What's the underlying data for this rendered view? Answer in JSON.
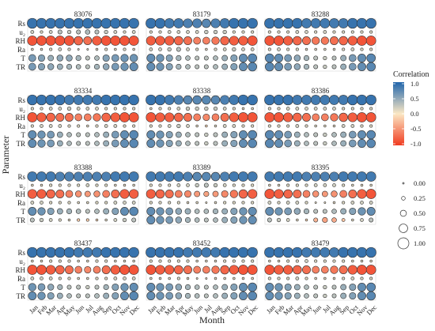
{
  "chart_data": {
    "type": "heatmap",
    "encoding": "bubble",
    "axis": {
      "xlabel": "Month",
      "ylabel": "Parameter",
      "months": [
        "Jan",
        "Feb",
        "Mar",
        "Apr",
        "May",
        "Jun",
        "Jul",
        "Aug",
        "Sep",
        "Oct",
        "Nov",
        "Dec"
      ],
      "parameters": [
        "Rs",
        "u₂",
        "RH",
        "Ra",
        "T",
        "TR"
      ]
    },
    "legend": {
      "color_title": "Correlation",
      "color_ticks": [
        "1.0",
        "0.5",
        "0.0",
        "-0.5",
        "-1.0"
      ],
      "color_range": [
        -1,
        1
      ],
      "colors": {
        "high": "#2166ac",
        "mid": "#fbe8c4",
        "low": "#f03b20"
      },
      "size_ticks": [
        "0.00",
        "0.25",
        "0.50",
        "0.75",
        "1.00"
      ],
      "placement": "right"
    },
    "panels": [
      {
        "station": "83076",
        "values": [
          [
            0.9,
            0.9,
            0.9,
            0.9,
            0.9,
            0.9,
            0.9,
            0.9,
            0.9,
            0.9,
            0.9,
            0.9
          ],
          [
            0.2,
            0.15,
            0.2,
            0.3,
            0.25,
            0.3,
            0.35,
            0.3,
            0.25,
            0.2,
            0.15,
            0.2
          ],
          [
            -0.85,
            -0.85,
            -0.85,
            -0.85,
            -0.85,
            -0.75,
            -0.7,
            -0.8,
            -0.85,
            -0.85,
            -0.85,
            -0.85
          ],
          [
            0.1,
            0.1,
            0.15,
            0.2,
            0.15,
            0.05,
            0.05,
            0.1,
            0.15,
            0.1,
            0.15,
            0.1
          ],
          [
            0.6,
            0.55,
            0.45,
            0.5,
            0.5,
            0.4,
            0.3,
            0.35,
            0.55,
            0.6,
            0.65,
            0.65
          ],
          [
            0.6,
            0.55,
            0.5,
            0.45,
            0.4,
            0.35,
            0.3,
            0.4,
            0.5,
            0.6,
            0.65,
            0.7
          ]
        ]
      },
      {
        "station": "83179",
        "values": [
          [
            0.9,
            0.9,
            0.85,
            0.85,
            0.8,
            0.8,
            0.75,
            0.8,
            0.85,
            0.9,
            0.9,
            0.9
          ],
          [
            0.15,
            0.15,
            0.2,
            0.2,
            0.2,
            0.2,
            0.25,
            0.25,
            0.25,
            0.15,
            0.15,
            0.15
          ],
          [
            -0.8,
            -0.8,
            -0.8,
            -0.75,
            -0.7,
            -0.6,
            -0.6,
            -0.65,
            -0.75,
            -0.8,
            -0.8,
            -0.85
          ],
          [
            0.2,
            0.2,
            0.25,
            0.3,
            0.2,
            0.15,
            0.1,
            0.15,
            0.2,
            0.25,
            0.2,
            0.2
          ],
          [
            0.7,
            0.65,
            0.55,
            0.4,
            0.35,
            0.3,
            0.3,
            0.35,
            0.45,
            0.55,
            0.7,
            0.75
          ],
          [
            0.7,
            0.65,
            0.55,
            0.4,
            0.35,
            0.3,
            0.3,
            0.35,
            0.45,
            0.55,
            0.7,
            0.75
          ]
        ]
      },
      {
        "station": "83288",
        "values": [
          [
            0.9,
            0.9,
            0.9,
            0.9,
            0.85,
            0.85,
            0.85,
            0.85,
            0.85,
            0.9,
            0.9,
            0.9
          ],
          [
            0.15,
            0.15,
            0.15,
            0.2,
            0.2,
            0.15,
            0.2,
            0.15,
            0.15,
            0.15,
            0.15,
            0.15
          ],
          [
            -0.85,
            -0.85,
            -0.8,
            -0.75,
            -0.7,
            -0.65,
            -0.65,
            -0.7,
            -0.75,
            -0.8,
            -0.85,
            -0.85
          ],
          [
            0.15,
            0.2,
            0.15,
            0.15,
            0.1,
            0.1,
            0.1,
            0.1,
            0.15,
            0.2,
            0.15,
            0.15
          ],
          [
            0.75,
            0.7,
            0.6,
            0.5,
            0.4,
            0.3,
            0.25,
            0.3,
            0.45,
            0.6,
            0.7,
            0.75
          ],
          [
            0.75,
            0.7,
            0.6,
            0.5,
            0.4,
            0.3,
            0.25,
            0.3,
            0.45,
            0.6,
            0.7,
            0.75
          ]
        ]
      },
      {
        "station": "83334",
        "values": [
          [
            0.9,
            0.9,
            0.9,
            0.9,
            0.85,
            0.85,
            0.85,
            0.85,
            0.9,
            0.9,
            0.9,
            0.9
          ],
          [
            0.15,
            0.15,
            0.2,
            0.2,
            0.25,
            0.2,
            0.2,
            0.2,
            0.15,
            0.15,
            0.15,
            0.15
          ],
          [
            -0.85,
            -0.8,
            -0.75,
            -0.7,
            -0.7,
            -0.6,
            -0.6,
            -0.65,
            -0.75,
            -0.8,
            -0.85,
            -0.85
          ],
          [
            0.15,
            0.2,
            0.2,
            0.2,
            0.15,
            0.15,
            0.1,
            0.15,
            0.2,
            0.2,
            0.15,
            0.15
          ],
          [
            0.7,
            0.65,
            0.6,
            0.45,
            0.35,
            0.3,
            0.3,
            0.35,
            0.45,
            0.6,
            0.7,
            0.75
          ],
          [
            0.7,
            0.65,
            0.6,
            0.45,
            0.35,
            0.3,
            0.3,
            0.35,
            0.45,
            0.6,
            0.7,
            0.75
          ]
        ]
      },
      {
        "station": "83338",
        "values": [
          [
            0.9,
            0.9,
            0.85,
            0.8,
            0.75,
            0.75,
            0.75,
            0.75,
            0.8,
            0.85,
            0.9,
            0.9
          ],
          [
            0.1,
            0.15,
            0.15,
            0.2,
            0.25,
            0.25,
            0.25,
            0.25,
            0.2,
            0.15,
            0.1,
            0.1
          ],
          [
            -0.85,
            -0.8,
            -0.8,
            -0.75,
            -0.7,
            -0.6,
            -0.55,
            -0.6,
            -0.7,
            -0.8,
            -0.85,
            -0.85
          ],
          [
            0.15,
            0.15,
            0.2,
            0.25,
            0.2,
            0.1,
            -0.1,
            0.1,
            0.2,
            0.2,
            0.15,
            0.15
          ],
          [
            0.7,
            0.65,
            0.55,
            0.45,
            0.35,
            0.3,
            0.25,
            0.3,
            0.45,
            0.55,
            0.7,
            0.75
          ],
          [
            0.7,
            0.65,
            0.55,
            0.45,
            0.35,
            0.3,
            0.25,
            0.3,
            0.45,
            0.55,
            0.7,
            0.75
          ]
        ]
      },
      {
        "station": "83386",
        "values": [
          [
            0.9,
            0.9,
            0.9,
            0.85,
            0.85,
            0.85,
            0.85,
            0.85,
            0.85,
            0.9,
            0.9,
            0.9
          ],
          [
            0.15,
            0.15,
            0.2,
            0.2,
            0.2,
            0.2,
            0.2,
            0.2,
            0.15,
            0.15,
            0.15,
            0.15
          ],
          [
            -0.85,
            -0.85,
            -0.8,
            -0.75,
            -0.7,
            -0.6,
            -0.6,
            -0.65,
            -0.75,
            -0.8,
            -0.85,
            -0.85
          ],
          [
            0.15,
            0.15,
            0.15,
            0.2,
            0.15,
            0.1,
            0.1,
            0.1,
            0.2,
            0.2,
            0.15,
            0.15
          ],
          [
            0.75,
            0.7,
            0.6,
            0.45,
            0.35,
            0.3,
            0.25,
            0.35,
            0.45,
            0.6,
            0.7,
            0.75
          ],
          [
            0.75,
            0.7,
            0.6,
            0.45,
            0.35,
            0.3,
            0.25,
            0.35,
            0.45,
            0.6,
            0.7,
            0.75
          ]
        ]
      },
      {
        "station": "83388",
        "values": [
          [
            0.85,
            0.85,
            0.85,
            0.8,
            0.8,
            0.8,
            0.8,
            0.8,
            0.8,
            0.85,
            0.85,
            0.85
          ],
          [
            0.1,
            0.1,
            0.15,
            0.15,
            0.15,
            0.15,
            0.2,
            0.15,
            0.15,
            0.1,
            0.1,
            0.1
          ],
          [
            -0.8,
            -0.8,
            -0.75,
            -0.7,
            -0.6,
            -0.5,
            -0.45,
            -0.5,
            -0.6,
            -0.7,
            -0.8,
            -0.8
          ],
          [
            0.2,
            0.2,
            0.15,
            0.15,
            0.15,
            0.1,
            0.1,
            0.15,
            0.15,
            0.2,
            0.2,
            0.2
          ],
          [
            0.7,
            0.65,
            0.55,
            0.45,
            0.4,
            0.35,
            0.3,
            0.35,
            0.45,
            0.55,
            0.7,
            0.75
          ],
          [
            0.3,
            0.25,
            0.2,
            0.15,
            0.1,
            -0.15,
            -0.15,
            -0.1,
            0.1,
            0.2,
            0.25,
            0.3
          ]
        ]
      },
      {
        "station": "83389",
        "values": [
          [
            0.85,
            0.85,
            0.85,
            0.85,
            0.8,
            0.75,
            0.75,
            0.75,
            0.8,
            0.85,
            0.85,
            0.85
          ],
          [
            0.15,
            0.15,
            0.15,
            0.2,
            0.2,
            0.25,
            0.3,
            0.25,
            0.2,
            0.15,
            0.15,
            0.15
          ],
          [
            -0.8,
            -0.75,
            -0.7,
            -0.6,
            -0.55,
            -0.45,
            -0.4,
            -0.45,
            -0.55,
            -0.65,
            -0.75,
            -0.8
          ],
          [
            0.15,
            0.15,
            0.15,
            0.15,
            0.1,
            0.1,
            0.05,
            0.1,
            0.15,
            0.15,
            0.15,
            0.15
          ],
          [
            0.7,
            0.65,
            0.6,
            0.5,
            0.45,
            0.35,
            0.35,
            0.4,
            0.45,
            0.55,
            0.65,
            0.7
          ],
          [
            0.7,
            0.65,
            0.6,
            0.5,
            0.4,
            0.35,
            0.3,
            0.35,
            0.45,
            0.55,
            0.65,
            0.7
          ]
        ]
      },
      {
        "station": "83395",
        "values": [
          [
            0.85,
            0.85,
            0.85,
            0.85,
            0.8,
            0.8,
            0.8,
            0.8,
            0.85,
            0.85,
            0.85,
            0.85
          ],
          [
            0.1,
            0.1,
            0.15,
            0.15,
            0.15,
            0.2,
            0.2,
            0.2,
            0.15,
            0.1,
            0.1,
            0.1
          ],
          [
            -0.85,
            -0.8,
            -0.75,
            -0.7,
            -0.6,
            -0.5,
            -0.45,
            -0.5,
            -0.6,
            -0.7,
            -0.8,
            -0.85
          ],
          [
            0.2,
            0.15,
            0.2,
            0.2,
            0.15,
            0.05,
            0.05,
            0.1,
            0.15,
            0.2,
            0.2,
            0.2
          ],
          [
            0.7,
            0.65,
            0.6,
            0.5,
            0.4,
            0.3,
            0.3,
            0.35,
            0.45,
            0.55,
            0.65,
            0.7
          ],
          [
            0.3,
            0.25,
            0.2,
            0.1,
            -0.1,
            -0.3,
            -0.4,
            -0.35,
            -0.2,
            0.1,
            0.2,
            0.3
          ]
        ]
      },
      {
        "station": "83437",
        "values": [
          [
            0.9,
            0.9,
            0.9,
            0.9,
            0.9,
            0.85,
            0.85,
            0.85,
            0.9,
            0.9,
            0.9,
            0.9
          ],
          [
            0.1,
            0.1,
            0.15,
            0.15,
            0.15,
            0.1,
            0.1,
            0.15,
            0.15,
            0.1,
            0.1,
            0.1
          ],
          [
            -0.85,
            -0.85,
            -0.8,
            -0.75,
            -0.7,
            -0.6,
            -0.55,
            -0.6,
            -0.7,
            -0.8,
            -0.85,
            -0.85
          ],
          [
            0.2,
            0.2,
            0.2,
            0.15,
            0.15,
            0.1,
            0.1,
            0.15,
            0.15,
            0.2,
            0.2,
            0.2
          ],
          [
            0.65,
            0.6,
            0.5,
            0.4,
            0.3,
            0.3,
            0.25,
            0.3,
            0.4,
            0.55,
            0.65,
            0.7
          ],
          [
            0.7,
            0.65,
            0.55,
            0.45,
            0.35,
            0.3,
            0.3,
            0.35,
            0.45,
            0.55,
            0.7,
            0.75
          ]
        ]
      },
      {
        "station": "83452",
        "values": [
          [
            0.9,
            0.9,
            0.9,
            0.9,
            0.85,
            0.85,
            0.85,
            0.85,
            0.9,
            0.9,
            0.9,
            0.9
          ],
          [
            0.15,
            0.15,
            0.15,
            0.15,
            0.15,
            0.1,
            0.1,
            0.1,
            0.15,
            0.15,
            0.15,
            0.15
          ],
          [
            -0.85,
            -0.8,
            -0.8,
            -0.75,
            -0.7,
            -0.6,
            -0.6,
            -0.65,
            -0.75,
            -0.8,
            -0.85,
            -0.85
          ],
          [
            0.1,
            0.1,
            0.1,
            0.15,
            0.1,
            0.05,
            0.05,
            0.1,
            0.1,
            0.1,
            0.1,
            0.1
          ],
          [
            0.7,
            0.65,
            0.6,
            0.5,
            0.4,
            0.35,
            0.3,
            0.35,
            0.45,
            0.55,
            0.7,
            0.75
          ],
          [
            0.7,
            0.65,
            0.6,
            0.5,
            0.4,
            0.35,
            0.3,
            0.35,
            0.45,
            0.55,
            0.7,
            0.75
          ]
        ]
      },
      {
        "station": "83479",
        "values": [
          [
            0.9,
            0.9,
            0.9,
            0.9,
            0.85,
            0.85,
            0.85,
            0.85,
            0.9,
            0.9,
            0.9,
            0.9
          ],
          [
            0.1,
            0.1,
            0.15,
            0.15,
            0.2,
            0.15,
            0.15,
            0.15,
            0.15,
            0.1,
            0.1,
            0.1
          ],
          [
            -0.85,
            -0.8,
            -0.8,
            -0.75,
            -0.7,
            -0.6,
            -0.6,
            -0.65,
            -0.7,
            -0.8,
            -0.85,
            -0.85
          ],
          [
            0.15,
            0.15,
            0.15,
            0.2,
            0.15,
            0.1,
            0.1,
            0.1,
            0.15,
            0.2,
            0.15,
            0.15
          ],
          [
            0.7,
            0.65,
            0.55,
            0.45,
            0.35,
            0.3,
            0.25,
            0.3,
            0.45,
            0.55,
            0.7,
            0.75
          ],
          [
            0.7,
            0.65,
            0.55,
            0.45,
            0.35,
            0.3,
            0.25,
            0.3,
            0.45,
            0.55,
            0.7,
            0.75
          ]
        ]
      }
    ]
  }
}
